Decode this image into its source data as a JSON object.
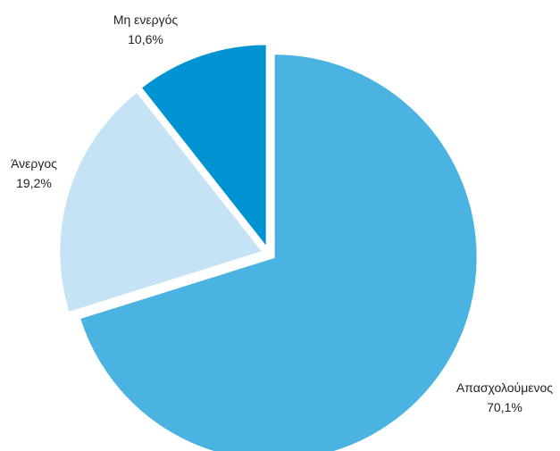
{
  "chart_data": {
    "type": "pie",
    "title": "",
    "unit": "%",
    "start_angle_deg": 0,
    "direction": "clockwise",
    "exploded": true,
    "legend": "none",
    "slices": [
      {
        "name": "Απασχολούμενος",
        "value": 70.1,
        "value_label": "70,1%",
        "color": "#4ab3e2"
      },
      {
        "name": "Άνεργος",
        "value": 19.2,
        "value_label": "19,2%",
        "color": "#c5e3f4"
      },
      {
        "name": "Μη ενεργός",
        "value": 10.6,
        "value_label": "10,6%",
        "color": "#0093d1"
      }
    ]
  }
}
